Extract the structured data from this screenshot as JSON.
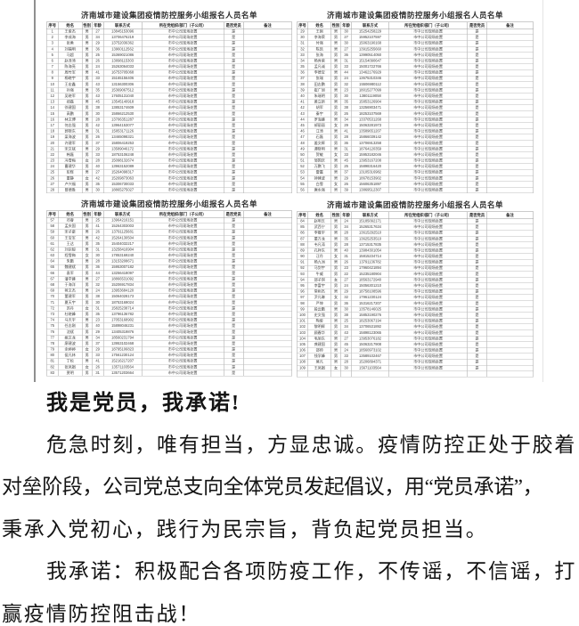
{
  "roster": {
    "title": "济南城市建设集团疫情防控服务小组报名人员名单",
    "headers": [
      "序号",
      "姓名",
      "性别",
      "年龄",
      "联系方式",
      "所在党组织/部门（子公司）",
      "是否党员",
      "备注"
    ],
    "org_value": "市中公司现场处置",
    "party_value": "是",
    "remark_value": "",
    "tables": [
      {
        "rows": [
          [
            1,
            "王俊杰",
            "男",
            27,
            "13845153096"
          ],
          [
            2,
            "李成海",
            "男",
            34,
            "13706476219"
          ],
          [
            3,
            "张勇",
            "男",
            29,
            "13752036362"
          ],
          [
            4,
            "刘福明",
            "男",
            36,
            "13960112562"
          ],
          [
            5,
            "马超",
            "男",
            25,
            "15369021086"
          ],
          [
            6,
            "赵泽涛",
            "男",
            26,
            "13098115303"
          ],
          [
            7,
            "陈海亮",
            "男",
            24,
            "15263064033"
          ],
          [
            8,
            "周竹军",
            "男",
            41,
            "16753705068"
          ],
          [
            9,
            "杨晓宇",
            "男",
            33,
            "15165156406"
          ],
          [
            10,
            "王宏鑫",
            "男",
            43,
            "13156300306"
          ],
          [
            11,
            "孙强",
            "男",
            35,
            "15369067512"
          ],
          [
            12,
            "吴晓军",
            "男",
            43,
            "17605131040"
          ],
          [
            13,
            "郑磊",
            "男",
            45,
            "13545140918"
          ],
          [
            14,
            "徐建国",
            "男",
            38,
            "13853174609"
          ],
          [
            15,
            "高鹏",
            "男",
            30,
            "15866212530"
          ],
          [
            16,
            "林文博",
            "男",
            28,
            "13706351287"
          ],
          [
            17,
            "何志强",
            "男",
            42,
            "13964153077"
          ],
          [
            18,
            "郭晓东",
            "男",
            31,
            "15053171126"
          ],
          [
            19,
            "梁海波",
            "男",
            26,
            "13465098321"
          ],
          [
            20,
            "许建军",
            "男",
            37,
            "15806419253"
          ],
          [
            21,
            "宋文斌",
            "男",
            29,
            "13589046172"
          ],
          [
            22,
            "韩磊",
            "男",
            33,
            "18753106248"
          ],
          [
            23,
            "冯雪梅",
            "女",
            28,
            "15098132674"
          ],
          [
            24,
            "曹建华",
            "男",
            40,
            "13963152089"
          ],
          [
            25,
            "彭辉",
            "男",
            27,
            "15264098317"
          ],
          [
            26,
            "董静",
            "女",
            42,
            "15269873063"
          ],
          [
            27,
            "卢兴福",
            "男",
            35,
            "15306730033"
          ],
          [
            28,
            "曾德胜",
            "男",
            30,
            "18865275027"
          ]
        ]
      },
      {
        "rows": [
          [
            29,
            "王刚",
            "男",
            30,
            "15254258229"
          ],
          [
            30,
            "李海荣",
            "男",
            27,
            "15952107597"
          ],
          [
            31,
            "付强",
            "男",
            30,
            "15063190168"
          ],
          [
            32,
            "陈凯",
            "男",
            27,
            "13915255660"
          ],
          [
            33,
            "张海",
            "男",
            36,
            "13990514050"
          ],
          [
            34,
            "杨秀荣",
            "男",
            31,
            "15154090647"
          ],
          [
            35,
            "孟凡诚",
            "男",
            33,
            "15001722766"
          ],
          [
            36,
            "李德宝",
            "男",
            44,
            "13462176929"
          ],
          [
            37,
            "张瑞",
            "男",
            24,
            "13675310346"
          ],
          [
            38,
            "田志鹏",
            "男",
            32,
            "15506980112"
          ],
          [
            39,
            "崔广旭",
            "男",
            23,
            "18015277099"
          ],
          [
            40,
            "朱瑞明",
            "男",
            30,
            "13801119058"
          ],
          [
            41,
            "黄立新",
            "男",
            35,
            "15853126904"
          ],
          [
            42,
            "胡军",
            "男",
            38,
            "13256903471"
          ],
          [
            43,
            "秦宇",
            "男",
            26,
            "18253107569"
          ],
          [
            44,
            "罗海峰",
            "男",
            34,
            "13370531268"
          ],
          [
            45,
            "郝丽丽",
            "女",
            29,
            "15063281973"
          ],
          [
            46,
            "江涛",
            "男",
            41,
            "13589651207"
          ],
          [
            47,
            "石磊",
            "男",
            28,
            "15866039142"
          ],
          [
            48,
            "姜文辉",
            "男",
            36,
            "13706913258"
          ],
          [
            49,
            "谭晓明",
            "男",
            31,
            "18764120359"
          ],
          [
            50,
            "贺敏",
            "女",
            33,
            "15953182046"
          ],
          [
            51,
            "邹国庆",
            "男",
            45,
            "13953167208"
          ],
          [
            52,
            "万鹏飞",
            "男",
            25,
            "15898316420"
          ],
          [
            53,
            "雷震",
            "男",
            37,
            "13105316982"
          ],
          [
            54,
            "钟建波",
            "男",
            29,
            "18678153902"
          ],
          [
            55,
            "白雪",
            "女",
            26,
            "15606351897"
          ],
          [
            56,
            "唐永强",
            "男",
            39,
            "13869512307"
          ]
        ]
      },
      {
        "rows": [
          [
            57,
            "邓睿",
            "男",
            25,
            "13964216151"
          ],
          [
            58,
            "孟庆国",
            "男",
            41,
            "15264303003"
          ],
          [
            59,
            "宋子豪",
            "男",
            26,
            "13791125681"
          ],
          [
            60,
            "王宝军",
            "男",
            42,
            "15264130504"
          ],
          [
            61,
            "王达",
            "男",
            35,
            "15404032217"
          ],
          [
            62,
            "刘宗毅",
            "男",
            31,
            "13258416904"
          ],
          [
            63,
            "程雪梅",
            "女",
            30,
            "17853169240"
          ],
          [
            64,
            "朱鹏",
            "男",
            28,
            "13153208671"
          ],
          [
            65,
            "魏建斌",
            "男",
            36,
            "15953007182"
          ],
          [
            66,
            "袁军",
            "男",
            44,
            "13256418097"
          ],
          [
            67,
            "潘学峰",
            "男",
            27,
            "18866531092"
          ],
          [
            68,
            "于海洋",
            "男",
            32,
            "15206917834"
          ],
          [
            69,
            "蒋文杰",
            "男",
            24,
            "13953684120"
          ],
          [
            70,
            "董建军",
            "男",
            38,
            "15064028173"
          ],
          [
            71,
            "夏天宇",
            "男",
            30,
            "18753169024"
          ],
          [
            72,
            "苏丹",
            "女",
            31,
            "15825238714"
          ],
          [
            73,
            "杜晓峰",
            "男",
            35,
            "13796136782"
          ],
          [
            74,
            "马天宇",
            "男",
            23,
            "17053168902"
          ],
          [
            75,
            "任志刚",
            "男",
            40,
            "15898046231"
          ],
          [
            76,
            "沈斌",
            "男",
            29,
            "13405319876"
          ],
          [
            77,
            "姚文龙",
            "男",
            34,
            "18560231794"
          ],
          [
            78,
            "廖建波",
            "男",
            37,
            "13953102468"
          ],
          [
            79,
            "余婷婷",
            "女",
            29,
            "18795106823"
          ],
          [
            80,
            "侯凡林",
            "男",
            33,
            "17561230124"
          ],
          [
            81,
            "丁松",
            "男",
            41,
            "15216217207"
          ],
          [
            82,
            "张凤娟",
            "女",
            26,
            "13571103564"
          ],
          [
            83,
            "贾明",
            "男",
            31,
            "13571203664"
          ]
        ]
      },
      {
        "rows": [
          [
            84,
            "赵明玉",
            "男",
            24,
            "15185092171"
          ],
          [
            85,
            "武西宁",
            "男",
            34,
            "15265317634"
          ],
          [
            86,
            "李敬宇",
            "男",
            28,
            "13615292510"
          ],
          [
            87,
            "董万龙",
            "男",
            35,
            "13625253510"
          ],
          [
            88,
            "韦凡涛",
            "男",
            28,
            "13715317835"
          ],
          [
            89,
            "孔祥东",
            "男",
            40,
            "13984301054"
          ],
          [
            90,
            "汪丹",
            "女",
            31,
            "15815234714"
          ],
          [
            91,
            "杨九洲",
            "男",
            26,
            "13791136782"
          ],
          [
            92,
            "马剑宇",
            "男",
            23,
            "17960421894"
          ],
          [
            93,
            "牛威",
            "男",
            22,
            "15235180904"
          ],
          [
            94,
            "邱子琪",
            "女",
            27,
            "18563172940"
          ],
          [
            95,
            "李富宇",
            "男",
            24,
            "15056301210"
          ],
          [
            96,
            "常树杰",
            "男",
            29,
            "18758108596"
          ],
          [
            97,
            "尹凡琳",
            "女",
            32,
            "17961230124"
          ],
          [
            98,
            "严坤",
            "男",
            36,
            "15316217207"
          ],
          [
            99,
            "段云鹏",
            "男",
            30,
            "13578146025"
          ],
          [
            100,
            "史文强",
            "男",
            38,
            "15853190276"
          ],
          [
            101,
            "陶俊",
            "男",
            25,
            "18253067194"
          ],
          [
            102,
            "黎明辉",
            "男",
            34,
            "13706531892"
          ],
          [
            103,
            "顾春华",
            "男",
            43,
            "15898123065"
          ],
          [
            104,
            "毛旭东",
            "男",
            27,
            "13953076182"
          ],
          [
            105,
            "龚建国",
            "男",
            45,
            "15063217908"
          ],
          [
            106,
            "邵帅",
            "男",
            24,
            "18560973102"
          ],
          [
            107,
            "钱学峰",
            "男",
            33,
            "13589102467"
          ],
          [
            108,
            "莫凡",
            "男",
            28,
            "15206894371"
          ],
          [
            109,
            "王凤娟",
            "女",
            30,
            "15671103564"
          ],
          []
        ]
      }
    ]
  },
  "document": {
    "heading": "我是党员，我承诺!",
    "lines": [
      "危急时刻，唯有担当，方显忠诚。疫情防控正处于胶着",
      "对垒阶段，公司党总支向全体党员发起倡议，用“党员承诺”，",
      "秉承入党初心，践行为民宗旨，背负起党员担当。",
      "我承诺：积极配合各项防疫工作，不传谣，不信谣，打",
      "赢疫情防控阻击战！"
    ]
  }
}
